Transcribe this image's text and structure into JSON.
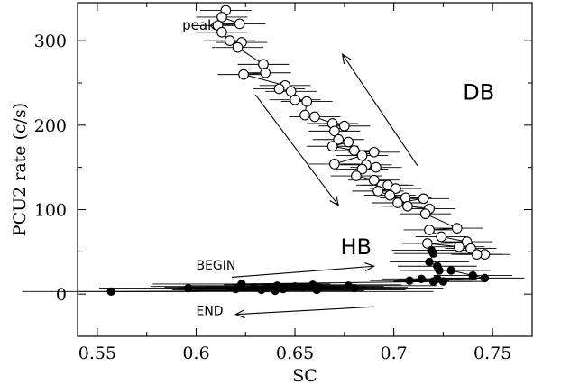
{
  "chart_data": {
    "type": "scatter",
    "xlabel": "SC",
    "ylabel": "PCU2 rate (c/s)",
    "xlim": [
      0.54,
      0.77
    ],
    "ylim": [
      -50,
      345
    ],
    "x_ticks": [
      0.55,
      0.6,
      0.65,
      0.7,
      0.75
    ],
    "x_tick_labels": [
      "0.55",
      "0.6",
      "0.65",
      "0.7",
      "0.75"
    ],
    "y_ticks": [
      0,
      100,
      200,
      300
    ],
    "y_tick_labels": [
      "0",
      "100",
      "200",
      "300"
    ],
    "series": [
      {
        "marker": "open-circle",
        "connected": true,
        "points": [
          [
            0.615,
            336
          ],
          [
            0.613,
            328
          ],
          [
            0.622,
            320
          ],
          [
            0.611,
            318
          ],
          [
            0.613,
            310
          ],
          [
            0.617,
            300
          ],
          [
            0.623,
            298
          ],
          [
            0.621,
            292
          ],
          [
            0.634,
            272
          ],
          [
            0.635,
            262
          ],
          [
            0.624,
            260
          ],
          [
            0.645,
            247
          ],
          [
            0.642,
            243
          ],
          [
            0.648,
            240
          ],
          [
            0.65,
            230
          ],
          [
            0.656,
            228
          ],
          [
            0.655,
            212
          ],
          [
            0.66,
            210
          ],
          [
            0.669,
            202
          ],
          [
            0.675,
            199
          ],
          [
            0.67,
            193
          ],
          [
            0.672,
            183
          ],
          [
            0.677,
            180
          ],
          [
            0.669,
            175
          ],
          [
            0.68,
            170
          ],
          [
            0.69,
            168
          ],
          [
            0.684,
            164
          ],
          [
            0.67,
            154
          ],
          [
            0.686,
            153
          ],
          [
            0.691,
            150
          ],
          [
            0.684,
            148
          ],
          [
            0.681,
            140
          ],
          [
            0.69,
            135
          ],
          [
            0.694,
            129
          ],
          [
            0.697,
            129
          ],
          [
            0.701,
            125
          ],
          [
            0.692,
            122
          ],
          [
            0.698,
            117
          ],
          [
            0.706,
            114
          ],
          [
            0.715,
            113
          ],
          [
            0.702,
            108
          ],
          [
            0.707,
            104
          ],
          [
            0.718,
            101
          ],
          [
            0.716,
            95
          ],
          [
            0.732,
            78
          ],
          [
            0.718,
            76
          ],
          [
            0.724,
            68
          ],
          [
            0.737,
            62
          ],
          [
            0.717,
            60
          ],
          [
            0.733,
            56
          ],
          [
            0.739,
            54
          ],
          [
            0.746,
            47
          ],
          [
            0.742,
            47
          ]
        ]
      },
      {
        "marker": "filled-circle",
        "connected": true,
        "points": [
          [
            0.719,
            52
          ],
          [
            0.72,
            48
          ],
          [
            0.718,
            38
          ],
          [
            0.722,
            33
          ],
          [
            0.723,
            28
          ],
          [
            0.729,
            28
          ],
          [
            0.74,
            22
          ],
          [
            0.746,
            19
          ],
          [
            0.722,
            18
          ],
          [
            0.714,
            18
          ],
          [
            0.708,
            16
          ],
          [
            0.72,
            15
          ],
          [
            0.725,
            15
          ],
          [
            0.623,
            12
          ],
          [
            0.659,
            11
          ],
          [
            0.641,
            10
          ],
          [
            0.677,
            10
          ],
          [
            0.65,
            9
          ],
          [
            0.622,
            9
          ],
          [
            0.629,
            8
          ],
          [
            0.636,
            8
          ],
          [
            0.642,
            8
          ],
          [
            0.662,
            8
          ],
          [
            0.646,
            8
          ],
          [
            0.654,
            8
          ],
          [
            0.596,
            7
          ],
          [
            0.636,
            7
          ],
          [
            0.68,
            7
          ],
          [
            0.62,
            6
          ],
          [
            0.644,
            6
          ],
          [
            0.633,
            5
          ],
          [
            0.661,
            5
          ],
          [
            0.64,
            4
          ],
          [
            0.557,
            3
          ]
        ]
      }
    ],
    "annotations": [
      {
        "text": "peak",
        "x": 0.593,
        "y": 313
      },
      {
        "text": "DB",
        "x": 0.735,
        "y": 230
      },
      {
        "text": "HB",
        "x": 0.673,
        "y": 47
      },
      {
        "text": "BEGIN",
        "x": 0.6,
        "y": 29
      },
      {
        "text": "END",
        "x": 0.6,
        "y": -25
      }
    ],
    "arrows": [
      {
        "from": [
          0.712,
          152
        ],
        "to": [
          0.674,
          284
        ]
      },
      {
        "from": [
          0.63,
          236
        ],
        "to": [
          0.672,
          105
        ]
      },
      {
        "from": [
          0.618,
          20
        ],
        "to": [
          0.69,
          33
        ]
      },
      {
        "from": [
          0.69,
          -15
        ],
        "to": [
          0.62,
          -24
        ]
      }
    ]
  }
}
